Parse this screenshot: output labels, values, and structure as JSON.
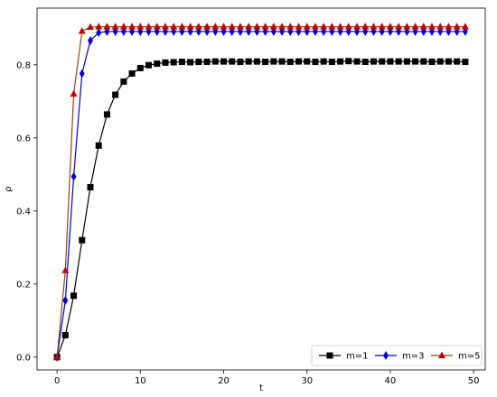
{
  "chart_data": {
    "type": "line",
    "xlabel": "t",
    "ylabel": "ρ",
    "xlim": [
      -2.4,
      51.4
    ],
    "ylim": [
      -0.035,
      0.955
    ],
    "xticks": [
      0,
      10,
      20,
      30,
      40,
      50
    ],
    "xtick_labels": [
      "0",
      "10",
      "20",
      "30",
      "40",
      "50"
    ],
    "yticks": [
      0.0,
      0.2,
      0.4,
      0.6,
      0.8
    ],
    "ytick_labels": [
      "0.0",
      "0.2",
      "0.4",
      "0.6",
      "0.8"
    ],
    "grid": false,
    "legend_position": "lower-right",
    "series": [
      {
        "name": "m=1",
        "color": "#000000",
        "marker": "square",
        "x": [
          0,
          1,
          2,
          3,
          4,
          5,
          6,
          7,
          8,
          9,
          10,
          11,
          12,
          13,
          14,
          15,
          16,
          17,
          18,
          19,
          20,
          21,
          22,
          23,
          24,
          25,
          26,
          27,
          28,
          29,
          30,
          31,
          32,
          33,
          34,
          35,
          36,
          37,
          38,
          39,
          40,
          41,
          42,
          43,
          44,
          45,
          46,
          47,
          48,
          49
        ],
        "values": [
          0.0,
          0.06,
          0.168,
          0.32,
          0.465,
          0.579,
          0.664,
          0.718,
          0.754,
          0.776,
          0.791,
          0.799,
          0.803,
          0.806,
          0.807,
          0.808,
          0.807,
          0.808,
          0.808,
          0.809,
          0.809,
          0.809,
          0.808,
          0.809,
          0.809,
          0.808,
          0.809,
          0.809,
          0.808,
          0.809,
          0.809,
          0.808,
          0.809,
          0.808,
          0.809,
          0.81,
          0.809,
          0.808,
          0.809,
          0.809,
          0.809,
          0.809,
          0.809,
          0.809,
          0.809,
          0.808,
          0.809,
          0.809,
          0.809,
          0.808
        ]
      },
      {
        "name": "m=3",
        "color": "#0000cc",
        "marker": "diamond",
        "x": [
          0,
          1,
          2,
          3,
          4,
          5,
          6,
          7,
          8,
          9,
          10,
          11,
          12,
          13,
          14,
          15,
          16,
          17,
          18,
          19,
          20,
          21,
          22,
          23,
          24,
          25,
          26,
          27,
          28,
          29,
          30,
          31,
          32,
          33,
          34,
          35,
          36,
          37,
          38,
          39,
          40,
          41,
          42,
          43,
          44,
          45,
          46,
          47,
          48,
          49
        ],
        "values": [
          0.0,
          0.155,
          0.494,
          0.776,
          0.866,
          0.888,
          0.891,
          0.891,
          0.891,
          0.891,
          0.891,
          0.891,
          0.891,
          0.891,
          0.891,
          0.891,
          0.891,
          0.891,
          0.891,
          0.891,
          0.891,
          0.891,
          0.891,
          0.891,
          0.891,
          0.891,
          0.891,
          0.891,
          0.891,
          0.891,
          0.891,
          0.891,
          0.891,
          0.891,
          0.891,
          0.891,
          0.891,
          0.891,
          0.891,
          0.891,
          0.891,
          0.891,
          0.891,
          0.891,
          0.891,
          0.891,
          0.891,
          0.891,
          0.891,
          0.891
        ]
      },
      {
        "name": "m=5",
        "color": "#c00000",
        "line_color": "#8b4513",
        "marker": "triangle",
        "x": [
          0,
          1,
          2,
          3,
          4,
          5,
          6,
          7,
          8,
          9,
          10,
          11,
          12,
          13,
          14,
          15,
          16,
          17,
          18,
          19,
          20,
          21,
          22,
          23,
          24,
          25,
          26,
          27,
          28,
          29,
          30,
          31,
          32,
          33,
          34,
          35,
          36,
          37,
          38,
          39,
          40,
          41,
          42,
          43,
          44,
          45,
          46,
          47,
          48,
          49
        ],
        "values": [
          0.0,
          0.237,
          0.72,
          0.892,
          0.903,
          0.904,
          0.904,
          0.904,
          0.904,
          0.904,
          0.904,
          0.904,
          0.904,
          0.904,
          0.904,
          0.904,
          0.904,
          0.904,
          0.904,
          0.904,
          0.904,
          0.904,
          0.904,
          0.904,
          0.904,
          0.904,
          0.904,
          0.904,
          0.904,
          0.904,
          0.904,
          0.904,
          0.904,
          0.904,
          0.904,
          0.904,
          0.904,
          0.904,
          0.904,
          0.904,
          0.904,
          0.904,
          0.904,
          0.904,
          0.904,
          0.904,
          0.904,
          0.904,
          0.904,
          0.904
        ]
      }
    ]
  }
}
